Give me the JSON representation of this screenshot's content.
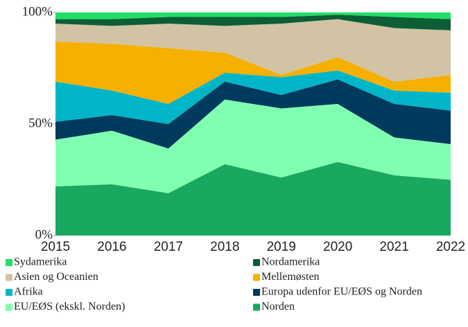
{
  "chart_data": {
    "type": "stacked_area",
    "x": [
      2015,
      2016,
      2017,
      2018,
      2019,
      2020,
      2021,
      2022
    ],
    "xlim": [
      2015,
      2022
    ],
    "xticks": [
      2015,
      2016,
      2017,
      2018,
      2019,
      2020,
      2021,
      2022
    ],
    "ylim": [
      0,
      100
    ],
    "yticks": [
      {
        "value": 0,
        "label": "0%"
      },
      {
        "value": 50,
        "label": "50%"
      },
      {
        "value": 100,
        "label": "100%"
      }
    ],
    "series": [
      {
        "name": "Sydamerika",
        "color": "#22dd66",
        "values": [
          3,
          3,
          2,
          2,
          2,
          1,
          2,
          3
        ]
      },
      {
        "name": "Nordamerika",
        "color": "#0d5e36",
        "values": [
          2,
          3,
          3,
          4,
          3,
          2,
          5,
          5
        ]
      },
      {
        "name": "Asien og Oceanien",
        "color": "#d2c3a5",
        "values": [
          8,
          8,
          11,
          12,
          23,
          17,
          24,
          20
        ]
      },
      {
        "name": "Mellemøsten",
        "color": "#f5b000",
        "values": [
          18,
          21,
          25,
          9,
          1,
          6,
          4,
          8
        ]
      },
      {
        "name": "Afrika",
        "color": "#00b5c8",
        "values": [
          18,
          11,
          9,
          4,
          8,
          4,
          6,
          8
        ]
      },
      {
        "name": "Europa udenfor EU/EØS og Norden",
        "color": "#003a5c",
        "values": [
          8,
          7,
          11,
          8,
          6,
          11,
          15,
          15
        ]
      },
      {
        "name": "EU/EØS (ekskl. Norden)",
        "color": "#80ffb0",
        "values": [
          21,
          24,
          20,
          29,
          31,
          26,
          17,
          16
        ]
      },
      {
        "name": "Norden",
        "color": "#1aa860",
        "values": [
          22,
          23,
          19,
          32,
          26,
          33,
          27,
          25
        ]
      }
    ]
  }
}
